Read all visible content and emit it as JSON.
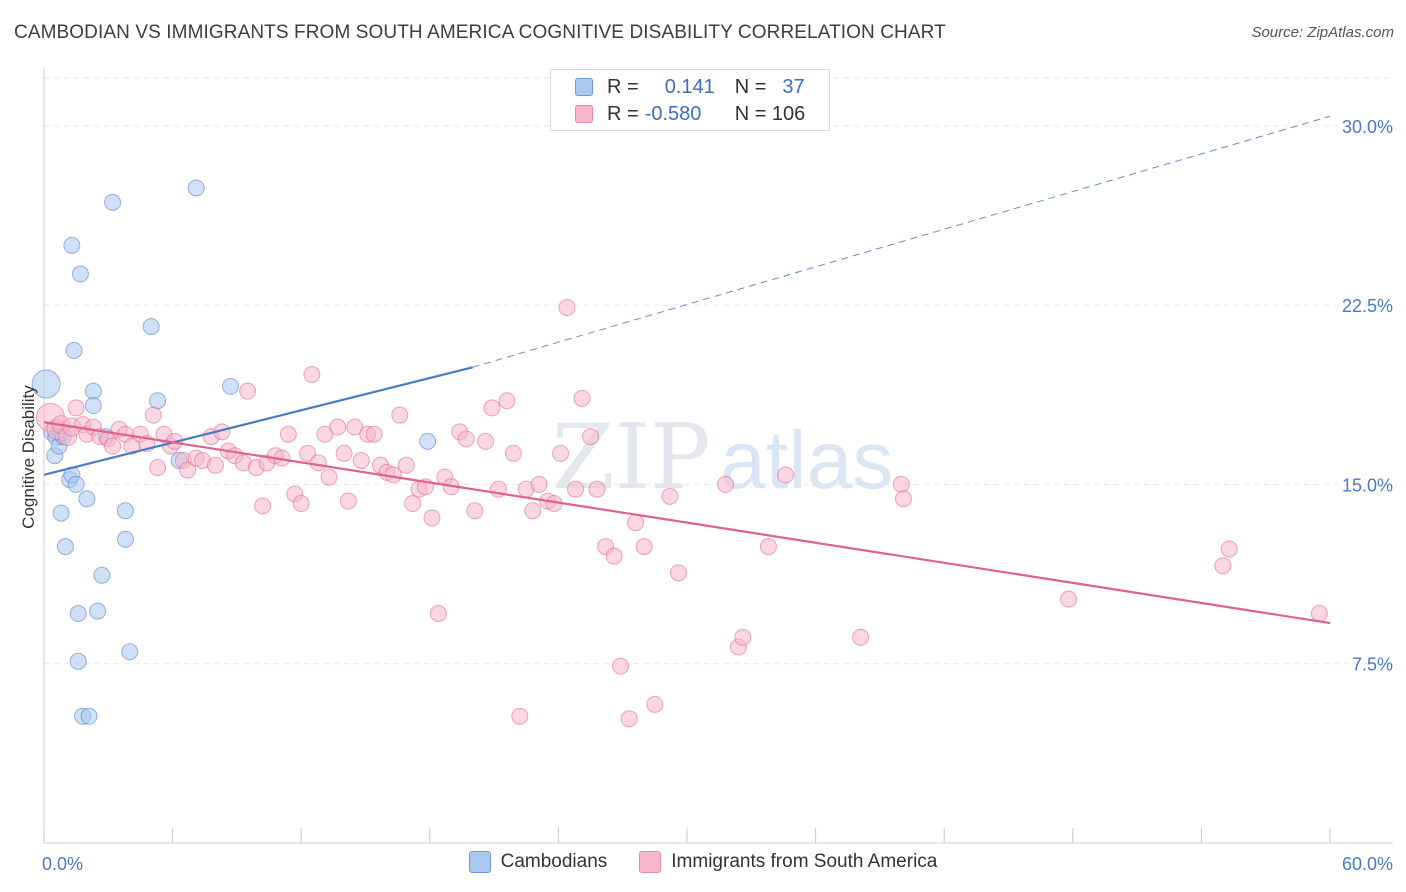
{
  "header": {
    "title": "CAMBODIAN VS IMMIGRANTS FROM SOUTH AMERICA COGNITIVE DISABILITY CORRELATION CHART",
    "source": "Source: ZipAtlas.com"
  },
  "watermark": {
    "zip": "ZIP",
    "atlas": "atlas"
  },
  "legend": {
    "rows": [
      {
        "r_label": "R =",
        "r_value": "0.141",
        "n_label": "N =",
        "n_value": "37",
        "color": "#aac8f0"
      },
      {
        "r_label": "R =",
        "r_value": "-0.580",
        "n_label": "N = 106",
        "n_value": "",
        "color": "#f6b7cb"
      }
    ]
  },
  "bottom_legend": [
    {
      "label": "Cambodians",
      "color": "#aac8f0"
    },
    {
      "label": "Immigrants from South America",
      "color": "#f6b7cb"
    }
  ],
  "chart_data": {
    "type": "scatter",
    "ylabel": "Cognitive Disability",
    "xlabel": "",
    "xlim": [
      0,
      60
    ],
    "ylim": [
      0,
      32
    ],
    "y_ticks": [
      {
        "value": 7.5,
        "label": "7.5%"
      },
      {
        "value": 15,
        "label": "15.0%"
      },
      {
        "value": 22.5,
        "label": "22.5%"
      },
      {
        "value": 30,
        "label": "30.0%"
      }
    ],
    "x_tick_labels": {
      "min": "0.0%",
      "max": "60.0%"
    },
    "grid": true,
    "series": [
      {
        "name": "Cambodians",
        "color": "#4a7ac6",
        "fill": "#aac8f0",
        "trend": {
          "x0": 0,
          "y0": 15.4,
          "x1": 20,
          "y1": 19.9,
          "dash_to_x": 60,
          "dash_to_y": 30.4
        },
        "points": [
          [
            0.1,
            19.2,
            14
          ],
          [
            0.4,
            17.2,
            9
          ],
          [
            0.5,
            16.2,
            8
          ],
          [
            0.6,
            17.0,
            9
          ],
          [
            0.7,
            16.6,
            8
          ],
          [
            0.8,
            17.2,
            9
          ],
          [
            0.9,
            17.0,
            8
          ],
          [
            0.8,
            13.8,
            8
          ],
          [
            1.0,
            12.4,
            8
          ],
          [
            1.2,
            15.2,
            8
          ],
          [
            1.3,
            15.4,
            8
          ],
          [
            1.3,
            25.0,
            8
          ],
          [
            1.4,
            20.6,
            8
          ],
          [
            1.5,
            15.0,
            8
          ],
          [
            1.6,
            9.6,
            8
          ],
          [
            1.6,
            7.6,
            8
          ],
          [
            1.7,
            23.8,
            8
          ],
          [
            1.8,
            5.3,
            8
          ],
          [
            2.0,
            14.4,
            8
          ],
          [
            2.1,
            5.3,
            8
          ],
          [
            2.3,
            18.9,
            8
          ],
          [
            2.3,
            18.3,
            8
          ],
          [
            2.5,
            9.7,
            8
          ],
          [
            2.7,
            11.2,
            8
          ],
          [
            2.9,
            17.0,
            8
          ],
          [
            3.2,
            26.8,
            8
          ],
          [
            3.8,
            13.9,
            8
          ],
          [
            3.8,
            12.7,
            8
          ],
          [
            4.0,
            8.0,
            8
          ],
          [
            5.0,
            21.6,
            8
          ],
          [
            5.3,
            18.5,
            8
          ],
          [
            6.3,
            16.0,
            8
          ],
          [
            7.1,
            27.4,
            8
          ],
          [
            8.7,
            19.1,
            8
          ],
          [
            17.9,
            16.8,
            8
          ]
        ]
      },
      {
        "name": "Immigrants from South America",
        "color": "#e0608e",
        "fill": "#f6b7cb",
        "trend": {
          "x0": 0,
          "y0": 17.6,
          "x1": 60,
          "y1": 9.2
        },
        "points": [
          [
            0.3,
            17.8,
            14
          ],
          [
            0.6,
            17.3,
            10
          ],
          [
            0.8,
            17.5,
            9
          ],
          [
            1.1,
            17.0,
            9
          ],
          [
            1.3,
            17.4,
            9
          ],
          [
            1.5,
            18.2,
            8
          ],
          [
            1.8,
            17.5,
            8
          ],
          [
            2.0,
            17.1,
            8
          ],
          [
            2.3,
            17.4,
            8
          ],
          [
            2.6,
            17.0,
            8
          ],
          [
            3.0,
            16.9,
            8
          ],
          [
            3.2,
            16.6,
            8
          ],
          [
            3.5,
            17.3,
            8
          ],
          [
            3.8,
            17.1,
            8
          ],
          [
            4.1,
            16.6,
            8
          ],
          [
            4.5,
            17.1,
            8
          ],
          [
            4.8,
            16.7,
            8
          ],
          [
            5.1,
            17.9,
            8
          ],
          [
            5.3,
            15.7,
            8
          ],
          [
            5.6,
            17.1,
            8
          ],
          [
            5.9,
            16.6,
            8
          ],
          [
            6.1,
            16.8,
            8
          ],
          [
            6.5,
            16.0,
            8
          ],
          [
            6.7,
            15.6,
            8
          ],
          [
            7.1,
            16.1,
            8
          ],
          [
            7.4,
            16.0,
            8
          ],
          [
            7.8,
            17.0,
            8
          ],
          [
            8.0,
            15.8,
            8
          ],
          [
            8.3,
            17.2,
            8
          ],
          [
            8.6,
            16.4,
            8
          ],
          [
            8.9,
            16.2,
            8
          ],
          [
            9.3,
            15.9,
            8
          ],
          [
            9.5,
            18.9,
            8
          ],
          [
            9.9,
            15.7,
            8
          ],
          [
            10.2,
            14.1,
            8
          ],
          [
            10.4,
            15.9,
            8
          ],
          [
            10.8,
            16.2,
            8
          ],
          [
            11.1,
            16.1,
            8
          ],
          [
            11.4,
            17.1,
            8
          ],
          [
            11.7,
            14.6,
            8
          ],
          [
            12.0,
            14.2,
            8
          ],
          [
            12.3,
            16.3,
            8
          ],
          [
            12.5,
            19.6,
            8
          ],
          [
            12.8,
            15.9,
            8
          ],
          [
            13.1,
            17.1,
            8
          ],
          [
            13.3,
            15.3,
            8
          ],
          [
            13.7,
            17.4,
            8
          ],
          [
            14.0,
            16.3,
            8
          ],
          [
            14.2,
            14.3,
            8
          ],
          [
            14.5,
            17.4,
            8
          ],
          [
            14.8,
            16.0,
            8
          ],
          [
            15.1,
            17.1,
            8
          ],
          [
            15.4,
            17.1,
            8
          ],
          [
            15.7,
            15.8,
            8
          ],
          [
            16.0,
            15.5,
            8
          ],
          [
            16.3,
            15.4,
            8
          ],
          [
            16.6,
            17.9,
            8
          ],
          [
            16.9,
            15.8,
            8
          ],
          [
            17.2,
            14.2,
            8
          ],
          [
            17.5,
            14.8,
            8
          ],
          [
            17.8,
            14.9,
            8
          ],
          [
            18.1,
            13.6,
            8
          ],
          [
            18.4,
            9.6,
            8
          ],
          [
            18.7,
            15.3,
            8
          ],
          [
            19.0,
            14.9,
            8
          ],
          [
            19.4,
            17.2,
            8
          ],
          [
            19.7,
            16.9,
            8
          ],
          [
            20.1,
            13.9,
            8
          ],
          [
            20.6,
            16.8,
            8
          ],
          [
            20.9,
            18.2,
            8
          ],
          [
            21.2,
            14.8,
            8
          ],
          [
            21.6,
            18.5,
            8
          ],
          [
            21.9,
            16.3,
            8
          ],
          [
            22.2,
            5.3,
            8
          ],
          [
            22.5,
            14.8,
            8
          ],
          [
            22.8,
            13.9,
            8
          ],
          [
            23.1,
            15.0,
            8
          ],
          [
            23.5,
            14.3,
            8
          ],
          [
            23.8,
            14.2,
            8
          ],
          [
            24.1,
            16.3,
            8
          ],
          [
            24.4,
            22.4,
            8
          ],
          [
            24.8,
            14.8,
            8
          ],
          [
            25.1,
            18.6,
            8
          ],
          [
            25.5,
            17.0,
            8
          ],
          [
            25.8,
            14.8,
            8
          ],
          [
            26.2,
            12.4,
            8
          ],
          [
            26.6,
            12.0,
            8
          ],
          [
            26.9,
            7.4,
            8
          ],
          [
            27.3,
            5.2,
            8
          ],
          [
            27.6,
            13.4,
            8
          ],
          [
            28.0,
            12.4,
            8
          ],
          [
            28.5,
            5.8,
            8
          ],
          [
            29.2,
            14.5,
            8
          ],
          [
            29.6,
            11.3,
            8
          ],
          [
            31.8,
            15.0,
            8
          ],
          [
            32.4,
            8.2,
            8
          ],
          [
            32.6,
            8.6,
            8
          ],
          [
            33.8,
            12.4,
            8
          ],
          [
            34.6,
            15.4,
            8
          ],
          [
            38.1,
            8.6,
            8
          ],
          [
            40.0,
            15.0,
            8
          ],
          [
            40.1,
            14.4,
            8
          ],
          [
            47.8,
            10.2,
            8
          ],
          [
            55.0,
            11.6,
            8
          ],
          [
            55.3,
            12.3,
            8
          ],
          [
            59.5,
            9.6,
            8
          ]
        ]
      }
    ]
  }
}
